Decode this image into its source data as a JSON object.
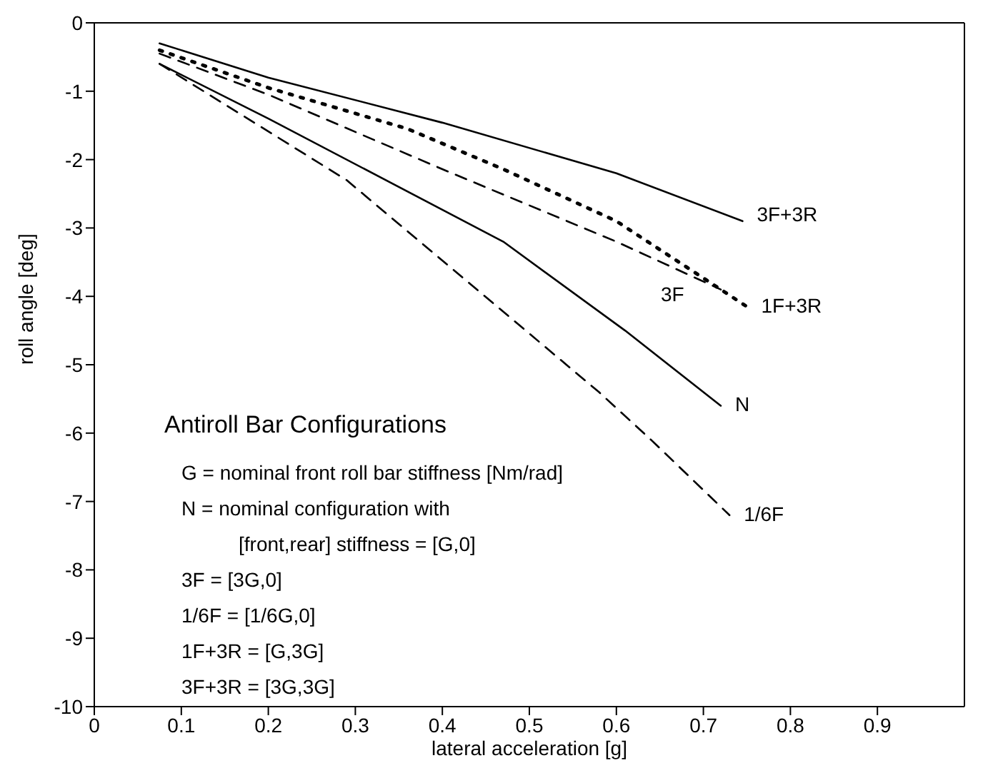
{
  "chart_data": {
    "type": "line",
    "xlabel": "lateral acceleration [g]",
    "ylabel": "roll angle [deg]",
    "xlim": [
      0,
      1
    ],
    "xticks": [
      0,
      0.1,
      0.2,
      0.3,
      0.4,
      0.5,
      0.6,
      0.7,
      0.8,
      0.9
    ],
    "ylim": [
      -10,
      0
    ],
    "yticks": [
      -10,
      -9,
      -8,
      -7,
      -6,
      -5,
      -4,
      -3,
      -2,
      -1,
      0
    ],
    "grid": false,
    "legend": false,
    "marker": "none",
    "series": [
      {
        "name": "3F+3R",
        "color": "#000000",
        "line_style": "solid",
        "x": [
          0.075,
          0.2,
          0.4,
          0.6,
          0.745
        ],
        "values": [
          -0.3,
          -0.8,
          -1.46,
          -2.2,
          -2.9
        ]
      },
      {
        "name": "1F+3R",
        "color": "#000000",
        "line_style": "dotted",
        "x": [
          0.075,
          0.2,
          0.36,
          0.47,
          0.6,
          0.75
        ],
        "values": [
          -0.4,
          -0.95,
          -1.55,
          -2.14,
          -2.9,
          -4.15
        ]
      },
      {
        "name": "3F",
        "color": "#000000",
        "line_style": "dashed",
        "x": [
          0.075,
          0.2,
          0.4,
          0.6,
          0.72
        ],
        "values": [
          -0.45,
          -1.05,
          -2.14,
          -3.2,
          -3.9
        ]
      },
      {
        "name": "N",
        "color": "#000000",
        "line_style": "solid",
        "x": [
          0.075,
          0.2,
          0.47,
          0.61,
          0.72
        ],
        "values": [
          -0.6,
          -1.4,
          -3.2,
          -4.5,
          -5.6
        ]
      },
      {
        "name": "1/6F",
        "color": "#000000",
        "line_style": "dashed",
        "x": [
          0.075,
          0.29,
          0.58,
          0.64,
          0.73
        ],
        "values": [
          -0.6,
          -2.3,
          -5.4,
          -6.1,
          -7.2
        ]
      }
    ],
    "annotations": [
      "Antiroll Bar Configurations",
      "G = nominal front roll bar stiffness [Nm/rad]",
      "N = nominal configuration with",
      "[front,rear] stiffness = [G,0]",
      "3F = [3G,0]",
      "1/6F = [1/6G,0]",
      "1F+3R = [G,3G]",
      "3F+3R = [3G,3G]"
    ]
  }
}
